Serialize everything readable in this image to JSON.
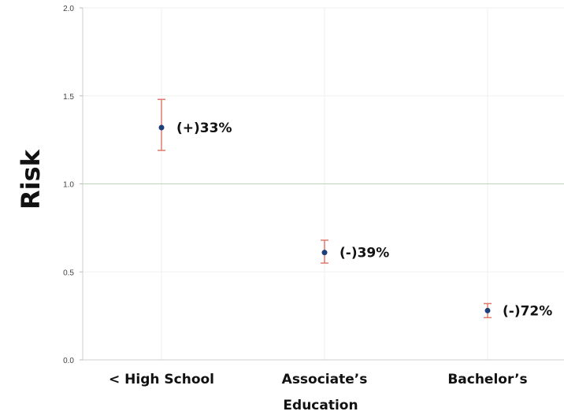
{
  "chart_data": {
    "type": "scatter",
    "ylabel": "Risk",
    "xlabel": "Education",
    "ylim": [
      0.0,
      2.0
    ],
    "yticks": [
      "0.0",
      "0.5",
      "1.0",
      "1.5",
      "2.0"
    ],
    "categories": [
      "< High School",
      "Associate’s",
      "Bachelor’s"
    ],
    "values": [
      1.32,
      0.61,
      0.28
    ],
    "lower": [
      1.19,
      0.55,
      0.24
    ],
    "upper": [
      1.48,
      0.68,
      0.32
    ],
    "labels": [
      "(+)33%",
      "(-)39%",
      "(-)72%"
    ],
    "grid": true,
    "colors": {
      "point": "#1f3f7a",
      "errorbar": "#e07b6a",
      "reference_line": "#b8d6b8",
      "grid": "#eef2ee"
    }
  }
}
